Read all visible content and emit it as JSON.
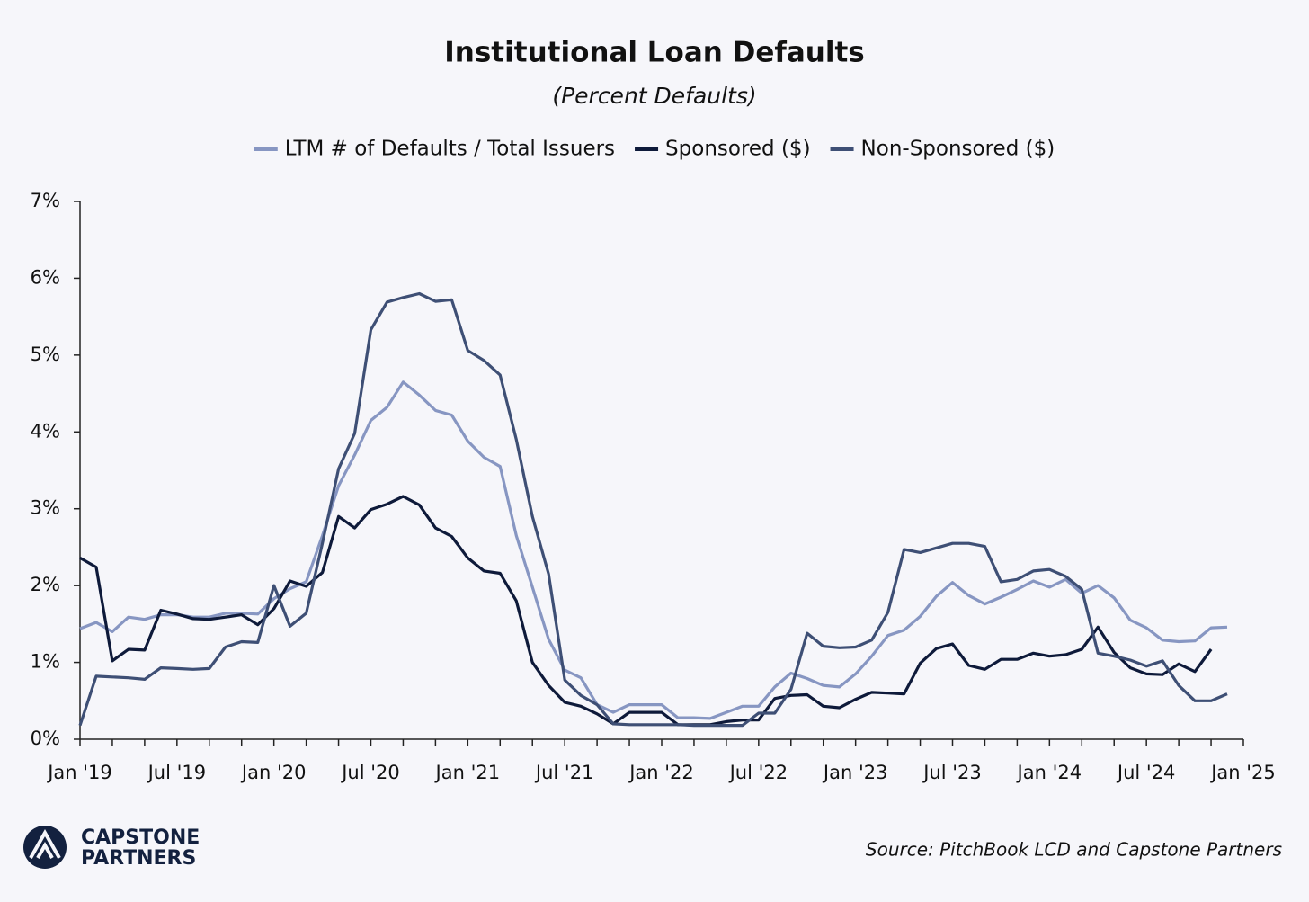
{
  "chart_data": {
    "type": "line",
    "title": "Institutional Loan Defaults",
    "subtitle": "(Percent Defaults)",
    "source": "Source: PitchBook LCD and Capstone Partners",
    "brand": [
      "CAPSTONE",
      "PARTNERS"
    ],
    "categories": [
      "Jan '19",
      null,
      null,
      null,
      null,
      null,
      "Jul '19",
      null,
      null,
      null,
      null,
      null,
      "Jan '20",
      null,
      null,
      null,
      null,
      null,
      "Jul '20",
      null,
      null,
      null,
      null,
      null,
      "Jan '21",
      null,
      null,
      null,
      null,
      null,
      "Jul '21",
      null,
      null,
      null,
      null,
      null,
      "Jan '22",
      null,
      null,
      null,
      null,
      null,
      "Jul '22",
      null,
      null,
      null,
      null,
      null,
      "Jan '23",
      null,
      null,
      null,
      null,
      null,
      "Jul '23",
      null,
      null,
      null,
      null,
      null,
      "Jan '24",
      null,
      null,
      null,
      null,
      null,
      "Jul '24",
      null,
      null,
      null,
      null,
      null,
      "Jan '25"
    ],
    "series": [
      {
        "name": "LTM # of Defaults / Total Issuers",
        "color": "#8796c2",
        "values": [
          1.44,
          1.52,
          1.4,
          1.59,
          1.56,
          1.62,
          1.62,
          1.59,
          1.59,
          1.64,
          1.64,
          1.63,
          1.83,
          1.96,
          2.05,
          2.65,
          3.3,
          3.7,
          4.15,
          4.32,
          4.65,
          4.48,
          4.28,
          4.22,
          3.88,
          3.67,
          3.55,
          2.65,
          1.98,
          1.3,
          0.9,
          0.8,
          0.45,
          0.35,
          0.45,
          0.45,
          0.45,
          0.28,
          0.28,
          0.27,
          0.35,
          0.43,
          0.43,
          0.68,
          0.86,
          0.79,
          0.7,
          0.68,
          0.85,
          1.08,
          1.35,
          1.42,
          1.6,
          1.86,
          2.04,
          1.87,
          1.76,
          1.85,
          1.95,
          2.06,
          1.98,
          2.08,
          1.9,
          2.0,
          1.84,
          1.55,
          1.45,
          1.29,
          1.27,
          1.28,
          1.45,
          1.46,
          null
        ]
      },
      {
        "name": "Sponsored ($)",
        "color": "#0e1a3a",
        "values": [
          2.36,
          2.24,
          1.02,
          1.17,
          1.16,
          1.68,
          1.63,
          1.57,
          1.56,
          1.59,
          1.62,
          1.49,
          1.7,
          2.06,
          1.99,
          2.17,
          2.9,
          2.75,
          2.99,
          3.06,
          3.16,
          3.05,
          2.75,
          2.64,
          2.36,
          2.19,
          2.16,
          1.8,
          1.0,
          0.7,
          0.48,
          0.43,
          0.33,
          0.2,
          0.35,
          0.35,
          0.35,
          0.19,
          0.19,
          0.19,
          0.23,
          0.25,
          0.25,
          0.53,
          0.57,
          0.58,
          0.43,
          0.41,
          0.52,
          0.61,
          0.6,
          0.59,
          0.99,
          1.18,
          1.24,
          0.96,
          0.91,
          1.04,
          1.04,
          1.12,
          1.08,
          1.1,
          1.17,
          1.46,
          1.13,
          0.93,
          0.85,
          0.84,
          0.98,
          0.88,
          1.17,
          null,
          null
        ]
      },
      {
        "name": "Non-Sponsored ($)",
        "color": "#3e4f75",
        "values": [
          0.18,
          0.82,
          0.81,
          0.8,
          0.78,
          0.93,
          0.92,
          0.91,
          0.92,
          1.2,
          1.27,
          1.26,
          2.0,
          1.47,
          1.64,
          2.55,
          3.52,
          3.98,
          5.33,
          5.69,
          5.75,
          5.8,
          5.7,
          5.72,
          5.06,
          4.93,
          4.74,
          3.9,
          2.9,
          2.15,
          0.77,
          0.57,
          0.45,
          0.2,
          0.19,
          0.19,
          0.19,
          0.19,
          0.18,
          0.18,
          0.18,
          0.18,
          0.34,
          0.34,
          0.65,
          1.38,
          1.21,
          1.19,
          1.2,
          1.29,
          1.65,
          2.47,
          2.43,
          2.49,
          2.55,
          2.55,
          2.51,
          2.05,
          2.08,
          2.19,
          2.21,
          2.12,
          1.95,
          1.12,
          1.08,
          1.03,
          0.95,
          1.02,
          0.7,
          0.5,
          0.5,
          0.59,
          null
        ]
      }
    ],
    "ylim": [
      0,
      7
    ],
    "yticks": [
      {
        "value": 0,
        "label": "0%"
      },
      {
        "value": 1,
        "label": "1%"
      },
      {
        "value": 2,
        "label": "2%"
      },
      {
        "value": 3,
        "label": "3%"
      },
      {
        "value": 4,
        "label": "4%"
      },
      {
        "value": 5,
        "label": "5%"
      },
      {
        "value": 6,
        "label": "6%"
      },
      {
        "value": 7,
        "label": "7%"
      }
    ],
    "grid": false,
    "legend": "top"
  }
}
